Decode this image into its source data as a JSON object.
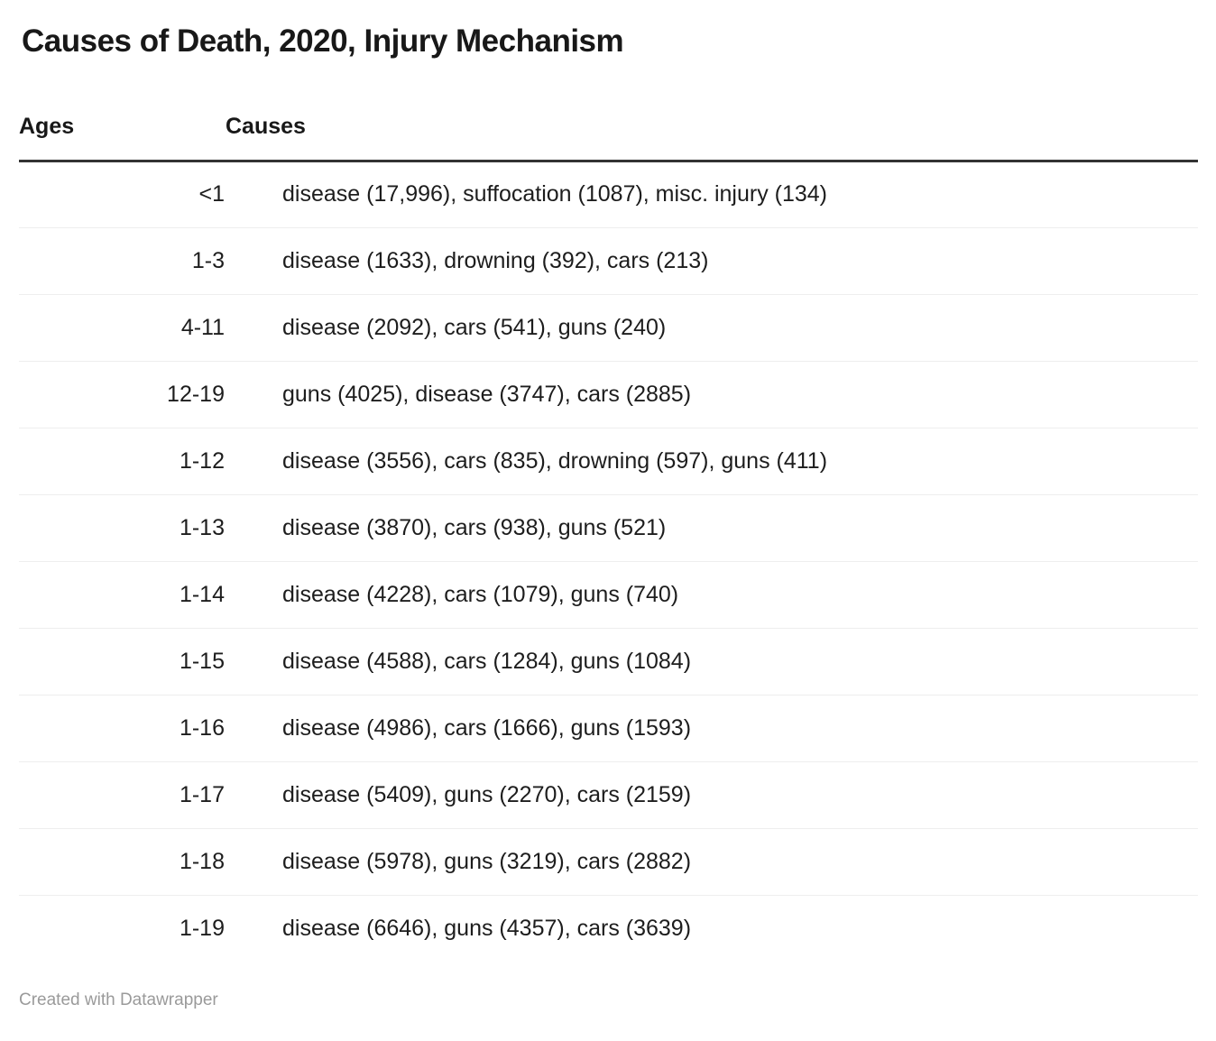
{
  "page": {
    "title": "Causes of Death, 2020, Injury Mechanism",
    "footer": "Created with Datawrapper"
  },
  "colors": {
    "background": "#ffffff",
    "title_text": "#181818",
    "body_text": "#1d1d1d",
    "header_rule": "#333333",
    "row_divider": "#eeeeee",
    "footer_text": "#9a9a9a"
  },
  "table": {
    "columns": [
      "Ages",
      "Causes"
    ],
    "rows": [
      {
        "ages": "<1",
        "causes": "disease (17,996), suffocation (1087), misc. injury (134)"
      },
      {
        "ages": "1-3",
        "causes": "disease (1633), drowning (392), cars (213)"
      },
      {
        "ages": "4-11",
        "causes": "disease (2092), cars (541), guns (240)"
      },
      {
        "ages": "12-19",
        "causes": "guns (4025), disease (3747), cars (2885)"
      },
      {
        "ages": "1-12",
        "causes": "disease (3556), cars (835), drowning (597), guns (411)"
      },
      {
        "ages": "1-13",
        "causes": "disease (3870), cars (938), guns (521)"
      },
      {
        "ages": "1-14",
        "causes": "disease (4228), cars (1079), guns (740)"
      },
      {
        "ages": "1-15",
        "causes": "disease (4588), cars (1284), guns (1084)"
      },
      {
        "ages": "1-16",
        "causes": "disease (4986), cars (1666), guns (1593)"
      },
      {
        "ages": "1-17",
        "causes": "disease (5409), guns (2270), cars (2159)"
      },
      {
        "ages": "1-18",
        "causes": "disease (5978), guns (3219), cars (2882)"
      },
      {
        "ages": "1-19",
        "causes": "disease (6646), guns (4357), cars (3639)"
      }
    ]
  },
  "chart_data": {
    "type": "table",
    "title": "Causes of Death, 2020, Injury Mechanism",
    "columns": [
      "Ages",
      "Causes"
    ],
    "rows": [
      {
        "ages": "<1",
        "causes": [
          {
            "cause": "disease",
            "value": 17996
          },
          {
            "cause": "suffocation",
            "value": 1087
          },
          {
            "cause": "misc. injury",
            "value": 134
          }
        ]
      },
      {
        "ages": "1-3",
        "causes": [
          {
            "cause": "disease",
            "value": 1633
          },
          {
            "cause": "drowning",
            "value": 392
          },
          {
            "cause": "cars",
            "value": 213
          }
        ]
      },
      {
        "ages": "4-11",
        "causes": [
          {
            "cause": "disease",
            "value": 2092
          },
          {
            "cause": "cars",
            "value": 541
          },
          {
            "cause": "guns",
            "value": 240
          }
        ]
      },
      {
        "ages": "12-19",
        "causes": [
          {
            "cause": "guns",
            "value": 4025
          },
          {
            "cause": "disease",
            "value": 3747
          },
          {
            "cause": "cars",
            "value": 2885
          }
        ]
      },
      {
        "ages": "1-12",
        "causes": [
          {
            "cause": "disease",
            "value": 3556
          },
          {
            "cause": "cars",
            "value": 835
          },
          {
            "cause": "drowning",
            "value": 597
          },
          {
            "cause": "guns",
            "value": 411
          }
        ]
      },
      {
        "ages": "1-13",
        "causes": [
          {
            "cause": "disease",
            "value": 3870
          },
          {
            "cause": "cars",
            "value": 938
          },
          {
            "cause": "guns",
            "value": 521
          }
        ]
      },
      {
        "ages": "1-14",
        "causes": [
          {
            "cause": "disease",
            "value": 4228
          },
          {
            "cause": "cars",
            "value": 1079
          },
          {
            "cause": "guns",
            "value": 740
          }
        ]
      },
      {
        "ages": "1-15",
        "causes": [
          {
            "cause": "disease",
            "value": 4588
          },
          {
            "cause": "cars",
            "value": 1284
          },
          {
            "cause": "guns",
            "value": 1084
          }
        ]
      },
      {
        "ages": "1-16",
        "causes": [
          {
            "cause": "disease",
            "value": 4986
          },
          {
            "cause": "cars",
            "value": 1666
          },
          {
            "cause": "guns",
            "value": 1593
          }
        ]
      },
      {
        "ages": "1-17",
        "causes": [
          {
            "cause": "disease",
            "value": 5409
          },
          {
            "cause": "guns",
            "value": 2270
          },
          {
            "cause": "cars",
            "value": 2159
          }
        ]
      },
      {
        "ages": "1-18",
        "causes": [
          {
            "cause": "disease",
            "value": 5978
          },
          {
            "cause": "guns",
            "value": 3219
          },
          {
            "cause": "cars",
            "value": 2882
          }
        ]
      },
      {
        "ages": "1-19",
        "causes": [
          {
            "cause": "disease",
            "value": 6646
          },
          {
            "cause": "guns",
            "value": 4357
          },
          {
            "cause": "cars",
            "value": 3639
          }
        ]
      }
    ],
    "attribution": "Created with Datawrapper"
  }
}
